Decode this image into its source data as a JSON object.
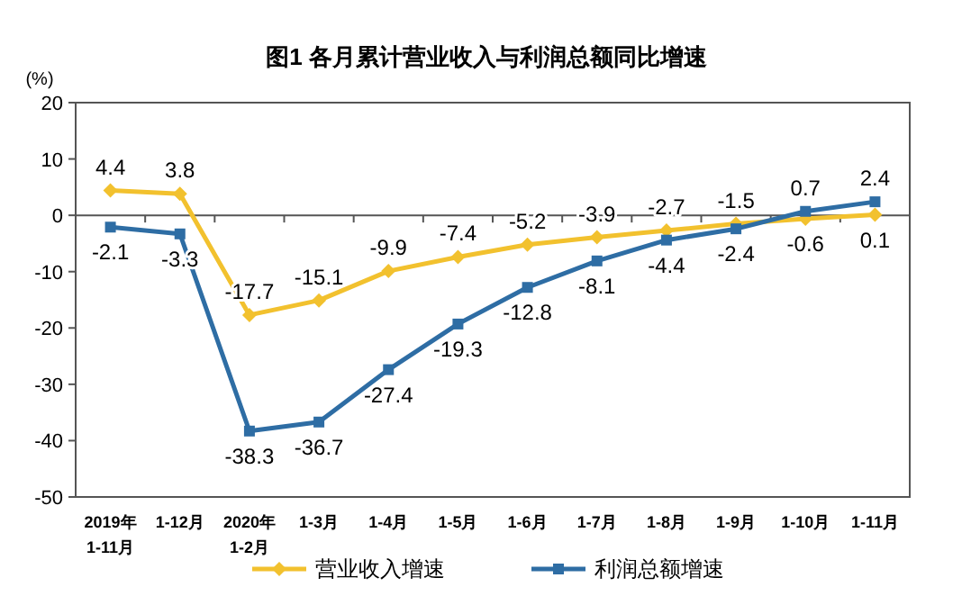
{
  "chart_data": {
    "type": "line",
    "title": "图1  各月累计营业收入与利润总额同比增速",
    "ylabel": "(%)",
    "categories": [
      "2019年\n1-11月",
      "1-12月",
      "2020年\n1-2月",
      "1-3月",
      "1-4月",
      "1-5月",
      "1-6月",
      "1-7月",
      "1-8月",
      "1-9月",
      "1-10月",
      "1-11月"
    ],
    "series": [
      {
        "name": "营业收入增速",
        "color": "#f2c12e",
        "marker": "diamond",
        "values": [
          4.4,
          3.8,
          -17.7,
          -15.1,
          -9.9,
          -7.4,
          -5.2,
          -3.9,
          -2.7,
          -1.5,
          -0.6,
          0.1
        ]
      },
      {
        "name": "利润总额增速",
        "color": "#2e6da4",
        "marker": "square",
        "values": [
          -2.1,
          -3.3,
          -38.3,
          -36.7,
          -27.4,
          -19.3,
          -12.8,
          -8.1,
          -4.4,
          -2.4,
          0.7,
          2.4
        ]
      }
    ],
    "ylim": [
      -50,
      20
    ],
    "yticks": [
      -50,
      -40,
      -30,
      -20,
      -10,
      0,
      10,
      20
    ],
    "data_labels": true,
    "legend": "bottom",
    "line_style": "solid"
  }
}
